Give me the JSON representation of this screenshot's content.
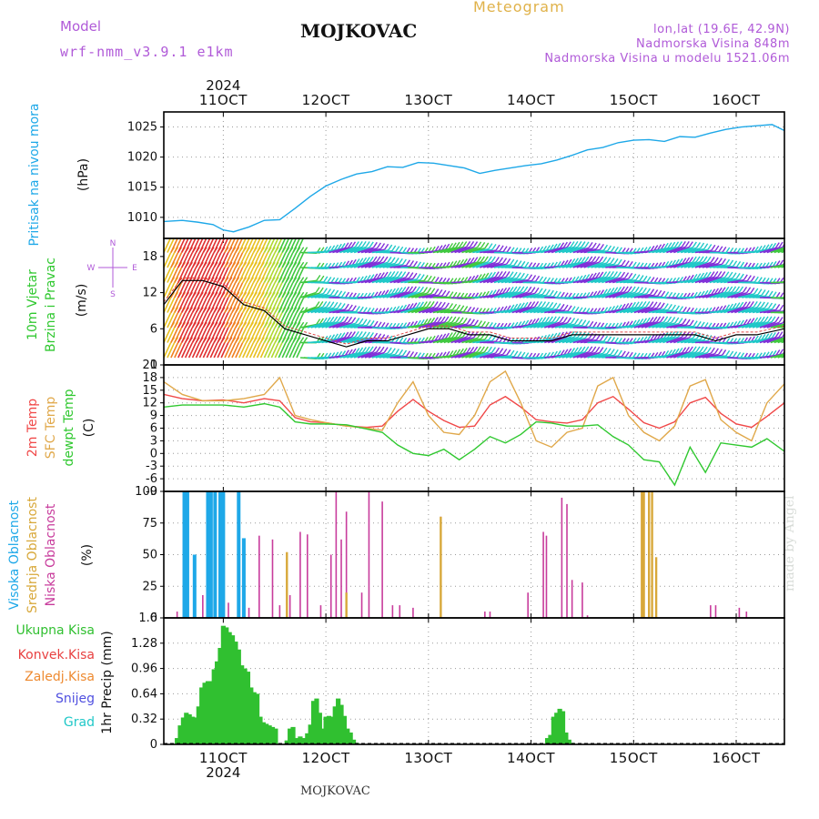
{
  "header": {
    "model_label": "Model",
    "model_name": "wrf-nmm_v3.9.1 e1km",
    "station": "MOJKOVAC",
    "product": "Meteogram",
    "coords": "lon,lat (19.6E, 42.9N)",
    "elevation": "Nadmorska Visina 848m",
    "model_elevation": "Nadmorska Visina u modelu 1521.06m"
  },
  "footer": {
    "station": "MOJKOVAC",
    "credit": "made by Angel"
  },
  "time_axis": {
    "year": "2024",
    "day_labels": [
      "11OCT",
      "12OCT",
      "13OCT",
      "14OCT",
      "15OCT",
      "16OCT"
    ],
    "day_positions": [
      11,
      12,
      13,
      14,
      15,
      16
    ],
    "range": [
      10.42,
      16.47
    ]
  },
  "colors": {
    "pressure": "#1ea8e8",
    "t2m": "#f04848",
    "sfc": "#e0a84a",
    "dewpoint": "#30c830",
    "high_cloud": "#1ea8e8",
    "mid_cloud": "#d8a83a",
    "low_cloud": "#c83c9c",
    "precip": "#30c030",
    "magenta_label": "#b05ad8"
  },
  "chart_data": [
    {
      "type": "line",
      "panel": "pressure",
      "ylabel_side": "Pritisak na nivou mora",
      "ylabel": "(hPa)",
      "ylim": [
        1006.5,
        1027.5
      ],
      "yticks": [
        1010,
        1015,
        1020,
        1025
      ],
      "grid": true,
      "x": [
        10.42,
        10.6,
        10.75,
        10.9,
        11.0,
        11.1,
        11.25,
        11.4,
        11.55,
        11.7,
        11.85,
        12.0,
        12.15,
        12.3,
        12.45,
        12.6,
        12.75,
        12.9,
        13.05,
        13.2,
        13.35,
        13.5,
        13.65,
        13.8,
        13.95,
        14.1,
        14.25,
        14.4,
        14.55,
        14.7,
        14.85,
        15.0,
        15.15,
        15.3,
        15.45,
        15.6,
        15.75,
        15.9,
        16.05,
        16.2,
        16.35,
        16.47
      ],
      "series": [
        {
          "values": [
            1009.3,
            1009.5,
            1009.2,
            1008.8,
            1007.9,
            1007.6,
            1008.4,
            1009.5,
            1009.6,
            1011.5,
            1013.5,
            1015.2,
            1016.3,
            1017.2,
            1017.6,
            1018.4,
            1018.3,
            1019.1,
            1019.0,
            1018.6,
            1018.2,
            1017.3,
            1017.8,
            1018.2,
            1018.6,
            1018.9,
            1019.5,
            1020.3,
            1021.2,
            1021.6,
            1022.4,
            1022.8,
            1022.9,
            1022.6,
            1023.4,
            1023.3,
            1024.0,
            1024.6,
            1025.0,
            1025.2,
            1025.4,
            1024.4
          ]
        }
      ]
    },
    {
      "type": "line",
      "panel": "wind",
      "ylabel_side": [
        "10m Vjetar",
        "Brzina i Pravac"
      ],
      "ylabel": "(m/s)",
      "compass": [
        "N",
        "E",
        "S",
        "W"
      ],
      "ylim": [
        0,
        21
      ],
      "yticks": [
        0,
        6,
        12,
        18
      ],
      "grid": false,
      "x": [
        10.42,
        10.6,
        10.8,
        11.0,
        11.2,
        11.4,
        11.6,
        11.8,
        12.0,
        12.2,
        12.4,
        12.6,
        12.8,
        13.0,
        13.2,
        13.4,
        13.6,
        13.8,
        14.0,
        14.2,
        14.4,
        14.6,
        14.8,
        15.0,
        15.2,
        15.4,
        15.6,
        15.8,
        16.0,
        16.2,
        16.47
      ],
      "series": [
        {
          "name": "speed",
          "values": [
            10,
            14,
            14,
            13,
            10,
            9,
            6,
            5,
            4,
            3,
            4,
            4,
            5,
            6,
            6,
            5,
            5,
            4,
            4,
            4,
            5,
            5,
            5,
            5,
            5,
            5,
            5,
            4,
            5,
            5,
            6
          ]
        }
      ]
    },
    {
      "type": "line",
      "panel": "temperature",
      "ylabel_side": [
        "2m Temp",
        "SFC Temp",
        "dewpt Temp"
      ],
      "ylabel": "(C)",
      "ylim": [
        -9,
        21
      ],
      "yticks": [
        -9,
        -6,
        -3,
        0,
        3,
        6,
        9,
        12,
        15,
        18,
        21
      ],
      "grid": true,
      "x": [
        10.42,
        10.6,
        10.8,
        11.0,
        11.2,
        11.4,
        11.55,
        11.7,
        11.85,
        12.0,
        12.2,
        12.4,
        12.55,
        12.7,
        12.85,
        13.0,
        13.15,
        13.3,
        13.45,
        13.6,
        13.75,
        13.9,
        14.05,
        14.2,
        14.35,
        14.5,
        14.65,
        14.8,
        14.95,
        15.1,
        15.25,
        15.4,
        15.55,
        15.7,
        15.85,
        16.0,
        16.15,
        16.3,
        16.47
      ],
      "series": [
        {
          "name": "t2m",
          "values": [
            14,
            13,
            12.5,
            12.7,
            12,
            13,
            12.5,
            8.5,
            7.5,
            7.3,
            6.5,
            6.2,
            6.5,
            10,
            12.8,
            10,
            7.8,
            6.2,
            6.5,
            11.5,
            13.5,
            11,
            8,
            7.5,
            7.2,
            8,
            12,
            13.5,
            10.5,
            7.3,
            6,
            7.5,
            12,
            13.3,
            9.5,
            7,
            6.2,
            8.8,
            12
          ]
        },
        {
          "name": "sfc",
          "values": [
            17,
            14,
            12.5,
            12.5,
            13,
            14,
            18,
            9,
            8,
            7.3,
            6.5,
            6,
            5.5,
            12,
            17,
            9,
            5,
            4.5,
            9,
            17,
            19.5,
            12,
            3,
            1.5,
            5,
            6,
            16,
            18,
            9,
            5,
            3,
            6.5,
            16,
            17.5,
            8,
            5,
            3,
            12,
            16.5
          ]
        },
        {
          "name": "dewpt",
          "values": [
            11,
            11.5,
            11.5,
            11.5,
            11,
            11.8,
            11,
            7.5,
            7,
            7,
            6.8,
            5.8,
            5,
            2,
            0,
            -0.5,
            1,
            -1.5,
            1,
            4,
            2.5,
            4.5,
            7.5,
            7.2,
            6.5,
            6.5,
            6.8,
            4,
            2,
            -1.5,
            -2,
            -7.5,
            1.5,
            -4.5,
            2.5,
            2,
            1.5,
            3.5,
            0.5
          ]
        }
      ]
    },
    {
      "type": "bar",
      "panel": "clouds",
      "ylabel_side": [
        "Visoka Oblacnost",
        "Srednja Oblacnost",
        "Niska Oblacnost"
      ],
      "ylabel": "(%)",
      "ylim": [
        0,
        100
      ],
      "yticks": [
        0,
        25,
        50,
        75,
        100
      ],
      "grid": true,
      "series": [
        {
          "name": "high",
          "x": [
            10.62,
            10.65,
            10.72,
            10.85,
            10.88,
            10.92,
            10.97,
            11.0,
            11.15,
            11.2
          ],
          "values": [
            100,
            100,
            50,
            100,
            100,
            100,
            100,
            100,
            100,
            63
          ]
        },
        {
          "name": "mid",
          "x": [
            11.2,
            11.62,
            12.2,
            13.12,
            15.08,
            15.1,
            15.15,
            15.18,
            15.22
          ],
          "values": [
            20,
            52,
            20,
            80,
            100,
            100,
            100,
            100,
            48
          ]
        },
        {
          "name": "low",
          "x": [
            10.55,
            10.8,
            11.05,
            11.25,
            11.35,
            11.48,
            11.55,
            11.65,
            11.75,
            11.82,
            11.95,
            12.05,
            12.1,
            12.15,
            12.2,
            12.35,
            12.42,
            12.55,
            12.65,
            12.72,
            12.85,
            13.12,
            13.55,
            13.6,
            13.97,
            14.12,
            14.15,
            14.3,
            14.35,
            14.4,
            14.5,
            14.55,
            15.75,
            15.8,
            16.03,
            16.1
          ],
          "values": [
            5,
            18,
            12,
            8,
            65,
            62,
            10,
            18,
            68,
            66,
            10,
            50,
            100,
            62,
            84,
            20,
            100,
            92,
            10,
            10,
            8,
            80,
            5,
            5,
            20,
            68,
            65,
            95,
            90,
            30,
            28,
            2,
            10,
            10,
            8,
            5
          ]
        }
      ]
    },
    {
      "type": "bar",
      "panel": "precipitation",
      "ylabel_side": [
        "Ukupna Kisa",
        "Konvek.Kisa",
        "Zaledj.Kisa",
        "Snijeg",
        "Grad"
      ],
      "ylabel": "1hr Precip (mm)",
      "ylim": [
        0,
        1.6
      ],
      "yticks": [
        0,
        0.32,
        0.64,
        0.96,
        1.28,
        1.6
      ],
      "grid": true,
      "series": [
        {
          "name": "total",
          "x": [
            10.55,
            10.58,
            10.61,
            10.64,
            10.67,
            10.7,
            10.73,
            10.76,
            10.79,
            10.82,
            10.85,
            10.88,
            10.91,
            10.94,
            10.97,
            11.0,
            11.03,
            11.06,
            11.09,
            11.12,
            11.15,
            11.18,
            11.21,
            11.24,
            11.27,
            11.3,
            11.33,
            11.36,
            11.39,
            11.42,
            11.45,
            11.48,
            11.51,
            11.62,
            11.65,
            11.68,
            11.72,
            11.75,
            11.78,
            11.82,
            11.85,
            11.88,
            11.91,
            11.94,
            11.97,
            12.0,
            12.03,
            12.06,
            12.09,
            12.12,
            12.15,
            12.18,
            12.21,
            12.24,
            12.27,
            12.3,
            14.16,
            14.19,
            14.22,
            14.25,
            14.28,
            14.31,
            14.34,
            14.37,
            14.4
          ],
          "values": [
            0.08,
            0.24,
            0.34,
            0.4,
            0.38,
            0.35,
            0.34,
            0.48,
            0.72,
            0.78,
            0.8,
            0.8,
            0.95,
            1.05,
            1.22,
            1.5,
            1.48,
            1.42,
            1.38,
            1.3,
            1.2,
            1.0,
            0.96,
            0.92,
            0.72,
            0.66,
            0.64,
            0.35,
            0.28,
            0.26,
            0.24,
            0.22,
            0.2,
            0.05,
            0.2,
            0.22,
            0.08,
            0.1,
            0.08,
            0.14,
            0.25,
            0.55,
            0.58,
            0.4,
            0.2,
            0.35,
            0.36,
            0.35,
            0.48,
            0.58,
            0.5,
            0.36,
            0.2,
            0.15,
            0.06,
            0.02,
            0.08,
            0.12,
            0.35,
            0.4,
            0.45,
            0.42,
            0.15,
            0.06,
            0.02
          ]
        }
      ]
    }
  ]
}
